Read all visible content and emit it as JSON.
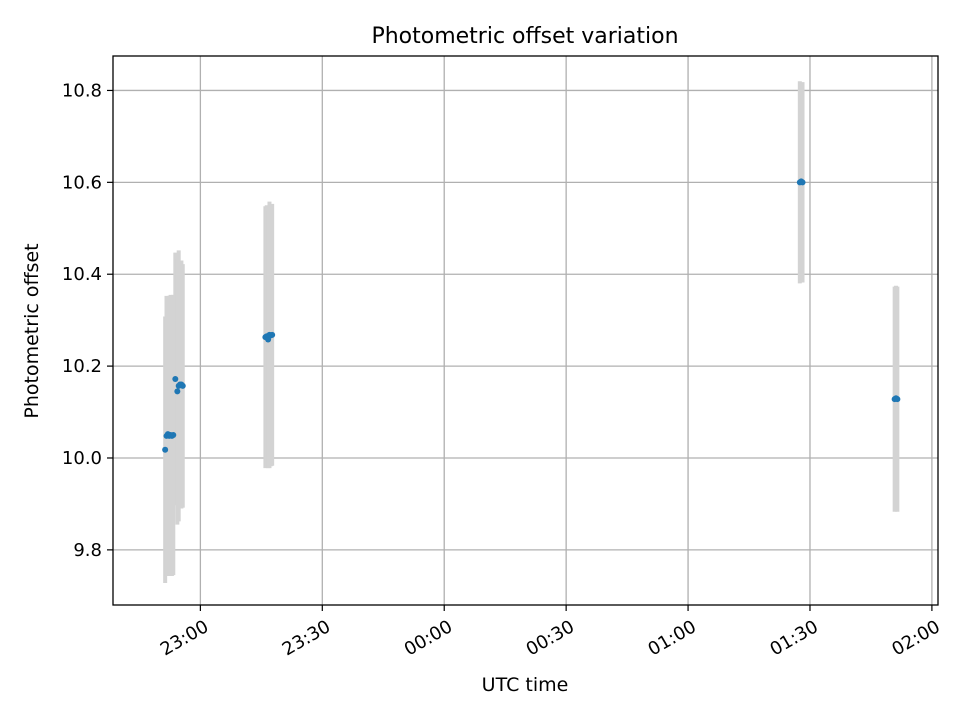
{
  "chart_data": {
    "type": "scatter",
    "title": "Photometric offset variation",
    "xlabel": "UTC time",
    "ylabel": "Photometric offset",
    "grid": true,
    "legend": "none",
    "xlim": [
      "22:38:30",
      "02:01:30"
    ],
    "ylim": [
      9.68,
      10.875
    ],
    "xticks": [
      "23:00",
      "23:30",
      "00:00",
      "00:30",
      "01:00",
      "01:30",
      "02:00"
    ],
    "xtick_values": [
      "23:00:00",
      "23:30:00",
      "00:00:00",
      "00:30:00",
      "01:00:00",
      "01:30:00",
      "02:00:00"
    ],
    "yticks": [
      "9.8",
      "10.0",
      "10.2",
      "10.4",
      "10.6",
      "10.8"
    ],
    "ytick_values": [
      9.8,
      10.0,
      10.2,
      10.4,
      10.6,
      10.8
    ],
    "colors": {
      "marker": "#1f77b4",
      "errorbar": "#d3d3d3",
      "grid": "#b0b0b0"
    },
    "series": [
      {
        "points": [
          {
            "x": "22:51:20",
            "y": 10.018,
            "err": 0.29
          },
          {
            "x": "22:51:40",
            "y": 10.048,
            "err": 0.305
          },
          {
            "x": "22:52:00",
            "y": 10.052,
            "err": 0.3
          },
          {
            "x": "22:52:20",
            "y": 10.048,
            "err": 0.305
          },
          {
            "x": "22:52:40",
            "y": 10.05,
            "err": 0.305
          },
          {
            "x": "22:53:00",
            "y": 10.048,
            "err": 0.305
          },
          {
            "x": "22:53:20",
            "y": 10.05,
            "err": 0.305
          },
          {
            "x": "22:53:50",
            "y": 10.172,
            "err": 0.275
          },
          {
            "x": "22:54:20",
            "y": 10.145,
            "err": 0.29
          },
          {
            "x": "22:54:40",
            "y": 10.157,
            "err": 0.295
          },
          {
            "x": "22:55:00",
            "y": 10.16,
            "err": 0.27
          },
          {
            "x": "22:55:20",
            "y": 10.16,
            "err": 0.27
          },
          {
            "x": "22:55:40",
            "y": 10.157,
            "err": 0.265
          },
          {
            "x": "23:16:00",
            "y": 10.263,
            "err": 0.285
          },
          {
            "x": "23:16:20",
            "y": 10.265,
            "err": 0.285
          },
          {
            "x": "23:16:40",
            "y": 10.258,
            "err": 0.28
          },
          {
            "x": "23:17:00",
            "y": 10.268,
            "err": 0.29
          },
          {
            "x": "23:17:20",
            "y": 10.267,
            "err": 0.285
          },
          {
            "x": "23:17:40",
            "y": 10.268,
            "err": 0.285
          },
          {
            "x": "01:27:30",
            "y": 10.6,
            "err": 0.22
          },
          {
            "x": "01:27:50",
            "y": 10.602,
            "err": 0.215
          },
          {
            "x": "01:28:10",
            "y": 10.6,
            "err": 0.218
          },
          {
            "x": "01:50:50",
            "y": 10.128,
            "err": 0.245
          },
          {
            "x": "01:51:10",
            "y": 10.13,
            "err": 0.245
          },
          {
            "x": "01:51:30",
            "y": 10.128,
            "err": 0.245
          }
        ]
      }
    ]
  }
}
